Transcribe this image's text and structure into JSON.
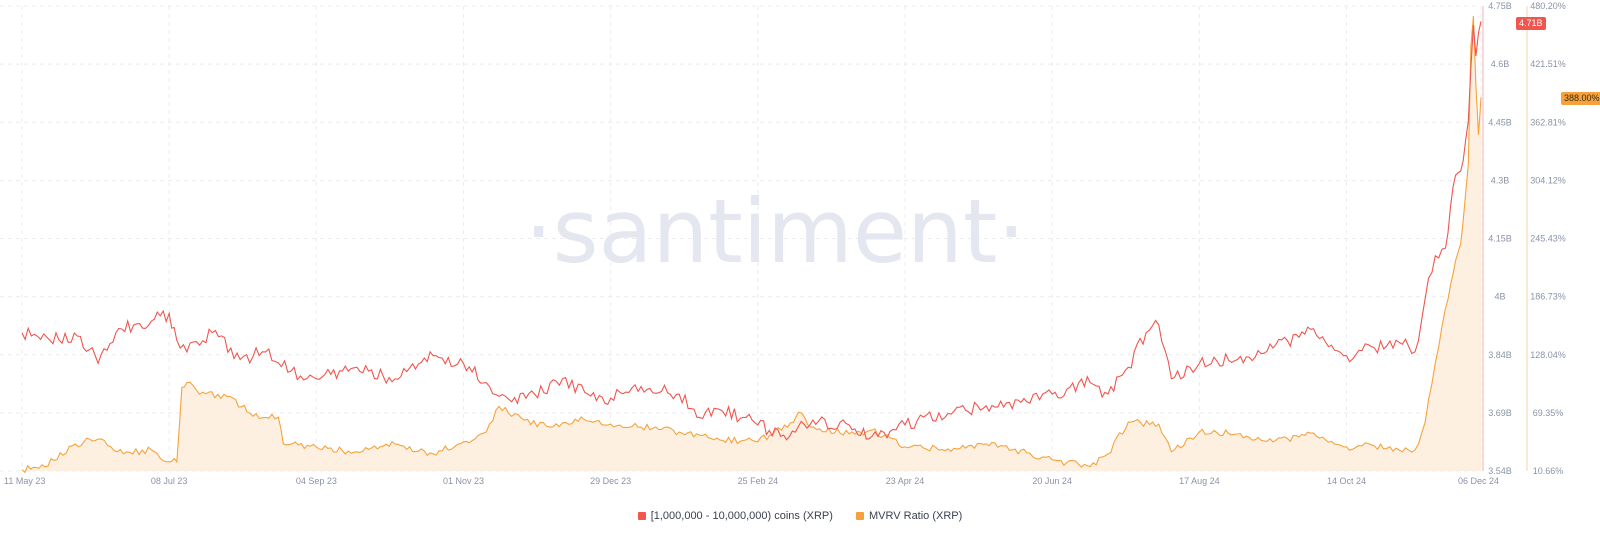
{
  "colors": {
    "coins_series": "#f0554e",
    "mvrv_series": "#f6a23c",
    "mvrv_fill": "#fdf0e0",
    "grid": "#ececf0",
    "watermark": "#e4e7f0"
  },
  "watermark": "·santiment·",
  "legend": {
    "coins": "[1,000,000 - 10,000,000) coins (XRP)",
    "mvrv": "MVRV Ratio (XRP)"
  },
  "badges": {
    "coins_last": "4.71B",
    "mvrv_last": "388.00%"
  },
  "chart_data": {
    "type": "line",
    "grid": true,
    "legend_position": "bottom-center",
    "x_ticks": [
      "11 May 23",
      "08 Jul 23",
      "04 Sep 23",
      "01 Nov 23",
      "29 Dec 23",
      "25 Feb 24",
      "23 Apr 24",
      "20 Jun 24",
      "17 Aug 24",
      "14 Oct 24",
      "06 Dec 24"
    ],
    "y_left": {
      "ticks": [
        "4.75B",
        "4.6B",
        "4.45B",
        "4.3B",
        "4.15B",
        "4B",
        "3.84B",
        "3.69B",
        "3.54B"
      ],
      "ylim": [
        3.54,
        4.75
      ]
    },
    "y_right": {
      "ticks": [
        "480.20%",
        "421.51%",
        "362.81%",
        "304.12%",
        "245.43%",
        "186.73%",
        "128.04%",
        "69.35%",
        "10.66%"
      ],
      "ylim": [
        10.66,
        480.2
      ]
    },
    "series": [
      {
        "name": "[1,000,000 - 10,000,000) coins (XRP)",
        "axis": "left",
        "type": "line",
        "unit": "billion XRP",
        "points": [
          [
            "11 May 23",
            3.9
          ],
          [
            "22 May 23",
            3.88
          ],
          [
            "03 Jun 23",
            3.89
          ],
          [
            "10 Jun 23",
            3.82
          ],
          [
            "17 Jun 23",
            3.9
          ],
          [
            "24 Jun 23",
            3.92
          ],
          [
            "01 Jul 23",
            3.93
          ],
          [
            "08 Jul 23",
            3.95
          ],
          [
            "11 Jul 23",
            3.88
          ],
          [
            "15 Jul 23",
            3.85
          ],
          [
            "25 Jul 23",
            3.9
          ],
          [
            "05 Aug 23",
            3.83
          ],
          [
            "15 Aug 23",
            3.85
          ],
          [
            "25 Aug 23",
            3.8
          ],
          [
            "04 Sep 23",
            3.78
          ],
          [
            "20 Sep 23",
            3.81
          ],
          [
            "05 Oct 23",
            3.78
          ],
          [
            "20 Oct 23",
            3.84
          ],
          [
            "01 Nov 23",
            3.82
          ],
          [
            "10 Nov 23",
            3.77
          ],
          [
            "20 Nov 23",
            3.72
          ],
          [
            "29 Nov 23",
            3.74
          ],
          [
            "10 Dec 23",
            3.78
          ],
          [
            "20 Dec 23",
            3.74
          ],
          [
            "29 Dec 23",
            3.73
          ],
          [
            "10 Jan 24",
            3.76
          ],
          [
            "25 Jan 24",
            3.74
          ],
          [
            "01 Feb 24",
            3.68
          ],
          [
            "10 Feb 24",
            3.7
          ],
          [
            "25 Feb 24",
            3.66
          ],
          [
            "05 Mar 24",
            3.63
          ],
          [
            "20 Mar 24",
            3.67
          ],
          [
            "01 Apr 24",
            3.66
          ],
          [
            "10 Apr 24",
            3.63
          ],
          [
            "23 Apr 24",
            3.66
          ],
          [
            "10 May 24",
            3.69
          ],
          [
            "25 May 24",
            3.71
          ],
          [
            "10 Jun 24",
            3.72
          ],
          [
            "20 Jun 24",
            3.74
          ],
          [
            "05 Jul 24",
            3.77
          ],
          [
            "12 Jul 24",
            3.74
          ],
          [
            "20 Jul 24",
            3.81
          ],
          [
            "27 Jul 24",
            3.9
          ],
          [
            "01 Aug 24",
            3.92
          ],
          [
            "06 Aug 24",
            3.78
          ],
          [
            "17 Aug 24",
            3.82
          ],
          [
            "01 Sep 24",
            3.83
          ],
          [
            "15 Sep 24",
            3.86
          ],
          [
            "01 Oct 24",
            3.91
          ],
          [
            "14 Oct 24",
            3.84
          ],
          [
            "25 Oct 24",
            3.86
          ],
          [
            "05 Nov 24",
            3.87
          ],
          [
            "10 Nov 24",
            3.85
          ],
          [
            "14 Nov 24",
            3.99
          ],
          [
            "18 Nov 24",
            4.1
          ],
          [
            "22 Nov 24",
            4.12
          ],
          [
            "25 Nov 24",
            4.28
          ],
          [
            "28 Nov 24",
            4.32
          ],
          [
            "01 Dec 24",
            4.45
          ],
          [
            "03 Dec 24",
            4.7
          ],
          [
            "04 Dec 24",
            4.62
          ],
          [
            "05 Dec 24",
            4.68
          ],
          [
            "06 Dec 24",
            4.71
          ]
        ]
      },
      {
        "name": "MVRV Ratio (XRP)",
        "axis": "right",
        "type": "area",
        "unit": "%",
        "points": [
          [
            "11 May 23",
            12
          ],
          [
            "20 May 23",
            15
          ],
          [
            "01 Jun 23",
            38
          ],
          [
            "10 Jun 23",
            43
          ],
          [
            "20 Jun 23",
            28
          ],
          [
            "01 Jul 23",
            32
          ],
          [
            "08 Jul 23",
            20
          ],
          [
            "11 Jul 23",
            20
          ],
          [
            "13 Jul 23",
            95
          ],
          [
            "15 Jul 23",
            100
          ],
          [
            "20 Jul 23",
            88
          ],
          [
            "01 Aug 23",
            86
          ],
          [
            "10 Aug 23",
            66
          ],
          [
            "20 Aug 23",
            65
          ],
          [
            "22 Aug 23",
            38
          ],
          [
            "04 Sep 23",
            35
          ],
          [
            "20 Sep 23",
            30
          ],
          [
            "05 Oct 23",
            38
          ],
          [
            "20 Oct 23",
            28
          ],
          [
            "01 Nov 23",
            40
          ],
          [
            "10 Nov 23",
            50
          ],
          [
            "15 Nov 23",
            76
          ],
          [
            "25 Nov 23",
            62
          ],
          [
            "05 Dec 23",
            55
          ],
          [
            "15 Dec 23",
            63
          ],
          [
            "29 Dec 23",
            58
          ],
          [
            "10 Jan 24",
            55
          ],
          [
            "25 Jan 24",
            50
          ],
          [
            "10 Feb 24",
            42
          ],
          [
            "25 Feb 24",
            40
          ],
          [
            "10 Mar 24",
            60
          ],
          [
            "12 Mar 24",
            70
          ],
          [
            "18 Mar 24",
            55
          ],
          [
            "01 Apr 24",
            48
          ],
          [
            "10 Apr 24",
            52
          ],
          [
            "23 Apr 24",
            35
          ],
          [
            "10 May 24",
            33
          ],
          [
            "25 May 24",
            38
          ],
          [
            "10 Jun 24",
            29
          ],
          [
            "20 Jun 24",
            22
          ],
          [
            "05 Jul 24",
            15
          ],
          [
            "12 Jul 24",
            28
          ],
          [
            "20 Jul 24",
            60
          ],
          [
            "01 Aug 24",
            58
          ],
          [
            "06 Aug 24",
            30
          ],
          [
            "17 Aug 24",
            50
          ],
          [
            "01 Sep 24",
            48
          ],
          [
            "15 Sep 24",
            40
          ],
          [
            "01 Oct 24",
            49
          ],
          [
            "14 Oct 24",
            35
          ],
          [
            "25 Oct 24",
            36
          ],
          [
            "05 Nov 24",
            30
          ],
          [
            "10 Nov 24",
            32
          ],
          [
            "14 Nov 24",
            60
          ],
          [
            "18 Nov 24",
            120
          ],
          [
            "22 Nov 24",
            175
          ],
          [
            "25 Nov 24",
            210
          ],
          [
            "28 Nov 24",
            240
          ],
          [
            "01 Dec 24",
            320
          ],
          [
            "02 Dec 24",
            440
          ],
          [
            "03 Dec 24",
            470
          ],
          [
            "04 Dec 24",
            400
          ],
          [
            "05 Dec 24",
            350
          ],
          [
            "06 Dec 24",
            388
          ]
        ]
      }
    ]
  }
}
